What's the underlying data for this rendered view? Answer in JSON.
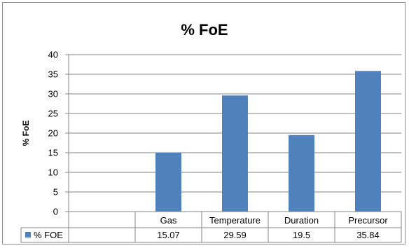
{
  "chart_data": {
    "type": "bar",
    "title": "% FoE",
    "ylabel": "% FoE",
    "xlabel": "",
    "categories": [
      "",
      "Gas",
      "Temperature",
      "Duration",
      "Precursor"
    ],
    "series": [
      {
        "name": "% FOE",
        "values": [
          null,
          15.07,
          29.59,
          19.5,
          35.84
        ]
      }
    ],
    "table_values": [
      "",
      "15.07",
      "29.59",
      "19.5",
      "35.84"
    ],
    "ylim": [
      0,
      40
    ],
    "yticks": [
      0,
      5,
      10,
      15,
      20,
      25,
      30,
      35,
      40
    ],
    "grid": true,
    "legend": "data table",
    "color": "#4f81bd"
  }
}
